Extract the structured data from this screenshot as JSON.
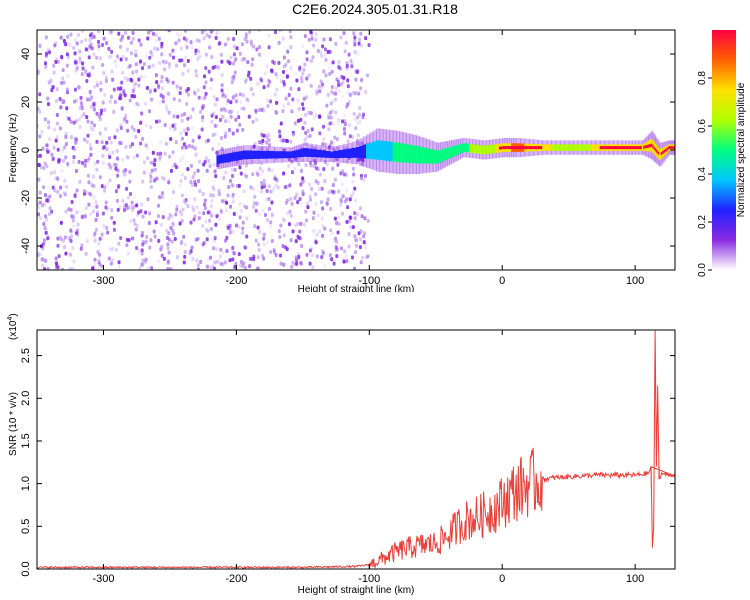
{
  "title": "C2E6.2024.305.01.31.R18",
  "chart_data": [
    {
      "type": "heatmap",
      "xlabel": "Height of straight line (km)",
      "ylabel": "Frequency (Hz)",
      "xlim": [
        -350,
        130
      ],
      "ylim": [
        -50,
        50
      ],
      "x_ticks": [
        -300,
        -200,
        -100,
        0,
        100
      ],
      "x_tick_labels": [
        "-300",
        "-200",
        "-100",
        "0",
        "100"
      ],
      "y_ticks": [
        -40,
        -20,
        0,
        20,
        40
      ],
      "y_tick_labels": [
        "-40",
        "-20",
        "0",
        "20",
        "40"
      ],
      "colorbar": {
        "label": "Normalized spectral amplitude",
        "range": [
          0,
          1
        ],
        "ticks": [
          0,
          0.2,
          0.4,
          0.6,
          0.8
        ],
        "tick_labels": [
          "0.0",
          "0.2",
          "0.4",
          "0.6",
          "0.8"
        ],
        "colors": [
          "#ffffff",
          "#8a2be2",
          "#2020ff",
          "#00c8ff",
          "#00ff80",
          "#b0ff00",
          "#ffe000",
          "#ff6000",
          "#ff0040"
        ]
      },
      "noise_region": {
        "x_range": [
          -350,
          -100
        ],
        "y_range": [
          -50,
          50
        ],
        "level": 0.15
      },
      "signal_ridge": [
        {
          "x": -215,
          "y": -4,
          "width": 4,
          "level": 0.25
        },
        {
          "x": -205,
          "y": -3,
          "width": 4,
          "level": 0.3
        },
        {
          "x": -195,
          "y": -2,
          "width": 4,
          "level": 0.25
        },
        {
          "x": -160,
          "y": -2,
          "width": 3,
          "level": 0.2
        },
        {
          "x": -150,
          "y": -1,
          "width": 4,
          "level": 0.25
        },
        {
          "x": -130,
          "y": -2,
          "width": 3,
          "level": 0.2
        },
        {
          "x": -110,
          "y": -1,
          "width": 5,
          "level": 0.25
        },
        {
          "x": -95,
          "y": 0,
          "width": 9,
          "level": 0.4
        },
        {
          "x": -80,
          "y": -1,
          "width": 9,
          "level": 0.45
        },
        {
          "x": -65,
          "y": -2,
          "width": 8,
          "level": 0.45
        },
        {
          "x": -50,
          "y": -3,
          "width": 6,
          "level": 0.45
        },
        {
          "x": -40,
          "y": -1,
          "width": 5,
          "level": 0.5
        },
        {
          "x": -30,
          "y": 1,
          "width": 4,
          "level": 0.55
        },
        {
          "x": -15,
          "y": 0,
          "width": 4,
          "level": 0.6
        },
        {
          "x": 0,
          "y": 1,
          "width": 4,
          "level": 0.75
        },
        {
          "x": 10,
          "y": 1,
          "width": 4,
          "level": 0.85
        },
        {
          "x": 30,
          "y": 1,
          "width": 3,
          "level": 0.7
        },
        {
          "x": 50,
          "y": 1,
          "width": 3,
          "level": 0.65
        },
        {
          "x": 70,
          "y": 1,
          "width": 3,
          "level": 0.7
        },
        {
          "x": 90,
          "y": 1,
          "width": 3,
          "level": 0.75
        },
        {
          "x": 105,
          "y": 1,
          "width": 3,
          "level": 0.7
        },
        {
          "x": 112,
          "y": 2,
          "width": 6,
          "level": 0.8
        },
        {
          "x": 118,
          "y": -2,
          "width": 5,
          "level": 0.7
        },
        {
          "x": 125,
          "y": 1,
          "width": 3,
          "level": 0.75
        },
        {
          "x": 130,
          "y": 1,
          "width": 3,
          "level": 0.7
        }
      ]
    },
    {
      "type": "line",
      "xlabel": "Height of straight line (km)",
      "ylabel": "SNR (10 * v/v)",
      "y_scale_label": "(x10",
      "y_scale_exponent": "4",
      "y_scale_suffix": ")",
      "xlim": [
        -350,
        130
      ],
      "ylim": [
        0,
        2.8
      ],
      "x_ticks": [
        -300,
        -200,
        -100,
        0,
        100
      ],
      "x_tick_labels": [
        "-300",
        "-200",
        "-100",
        "0",
        "100"
      ],
      "y_ticks": [
        0,
        0.5,
        1.0,
        1.5,
        2.0,
        2.5
      ],
      "y_tick_labels": [
        "0.0",
        "0.5",
        "1.0",
        "1.5",
        "2.0",
        "2.5"
      ],
      "line_color": "#e8403a",
      "series": [
        {
          "x": [
            -350,
            -300,
            -250,
            -200,
            -150,
            -110,
            -100,
            -90,
            -80,
            -70,
            -60,
            -50,
            -45,
            -40,
            -35,
            -30,
            -25,
            -20,
            -15,
            -10,
            -5,
            0,
            5,
            10,
            20,
            30,
            40,
            50,
            60,
            70,
            80,
            90,
            100,
            105,
            110,
            112,
            113,
            114,
            115,
            116,
            117,
            118,
            120,
            125,
            130
          ],
          "y": [
            0.02,
            0.02,
            0.02,
            0.02,
            0.02,
            0.03,
            0.05,
            0.12,
            0.2,
            0.25,
            0.28,
            0.3,
            0.35,
            0.4,
            0.48,
            0.55,
            0.58,
            0.6,
            0.63,
            0.68,
            0.72,
            0.78,
            0.86,
            0.92,
            1.0,
            1.05,
            1.07,
            1.08,
            1.09,
            1.1,
            1.1,
            1.1,
            1.1,
            1.11,
            1.12,
            1.2,
            0.25,
            0.5,
            2.8,
            1.2,
            2.15,
            1.05,
            1.12,
            1.1,
            1.1
          ]
        }
      ]
    }
  ]
}
